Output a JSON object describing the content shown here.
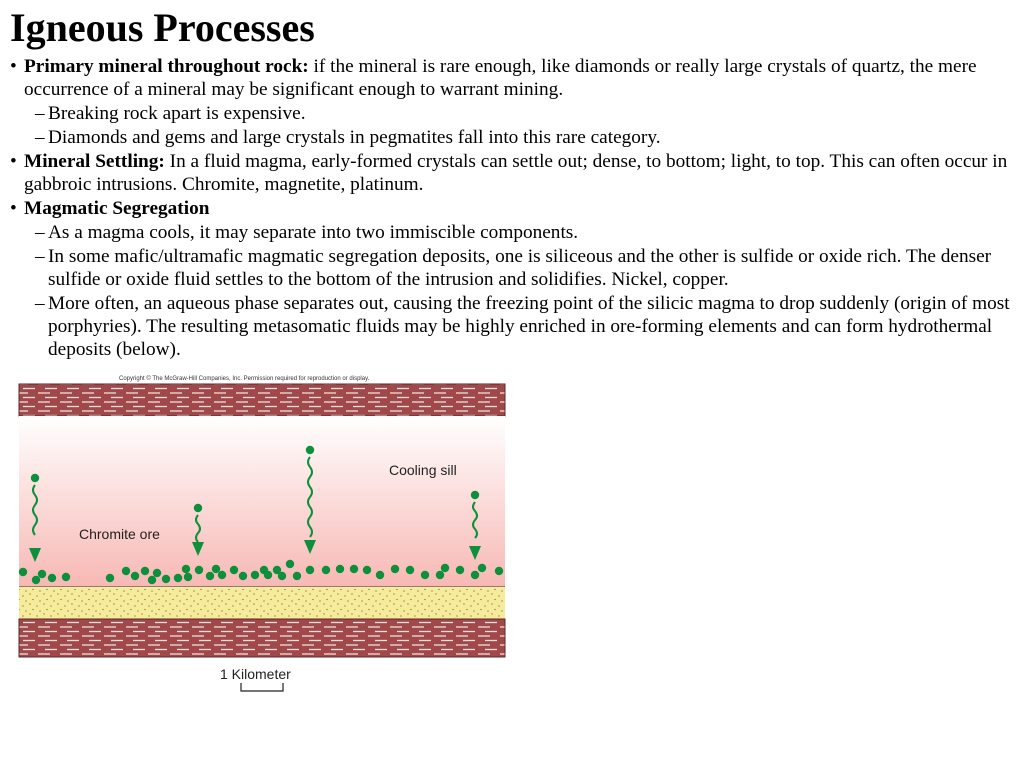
{
  "title": "Igneous Processes",
  "bullets": [
    {
      "lead": "Primary mineral throughout rock:",
      "text": " if the mineral is rare enough, like diamonds or really large crystals of quartz, the mere occurrence of a mineral may be significant enough to warrant mining.",
      "subs": [
        "Breaking rock apart is expensive.",
        "Diamonds and gems and large crystals in pegmatites fall into this rare category."
      ]
    },
    {
      "lead": "Mineral Settling:",
      "text": "  In a fluid magma, early-formed crystals can settle out; dense, to bottom; light, to top.  This can often occur in gabbroic intrusions.  Chromite, magnetite, platinum.",
      "subs": []
    },
    {
      "lead": "Magmatic Segregation",
      "text": "",
      "subs": [
        "As a magma cools, it may separate into two immiscible components.",
        "In some mafic/ultramafic magmatic segregation deposits, one is siliceous and the other is sulfide or oxide rich. The denser sulfide or oxide fluid settles to the bottom of the intrusion and solidifies. Nickel, copper.",
        "More often, an aqueous phase separates out, causing the freezing point of the silicic magma to drop suddenly (origin of most porphyries).  The resulting metasomatic fluids may be highly enriched in ore-forming elements and can form hydrothermal deposits (below)."
      ]
    }
  ],
  "bullet_symbol": "•",
  "dash_symbol": "–",
  "figure": {
    "copyright": "Copyright © The McGraw-Hill Companies, Inc. Permission required for reproduction or display.",
    "label_sill": "Cooling sill",
    "label_ore": "Chromite ore",
    "scale_label": "1 Kilometer",
    "colors": {
      "rock": "#a0484a",
      "rock_lines": "#ede0dc",
      "sill_top": "#ffffff",
      "sill_bottom": "#f7b8b4",
      "sand": "#f5eb9a",
      "crystal": "#0d8f3c"
    }
  }
}
